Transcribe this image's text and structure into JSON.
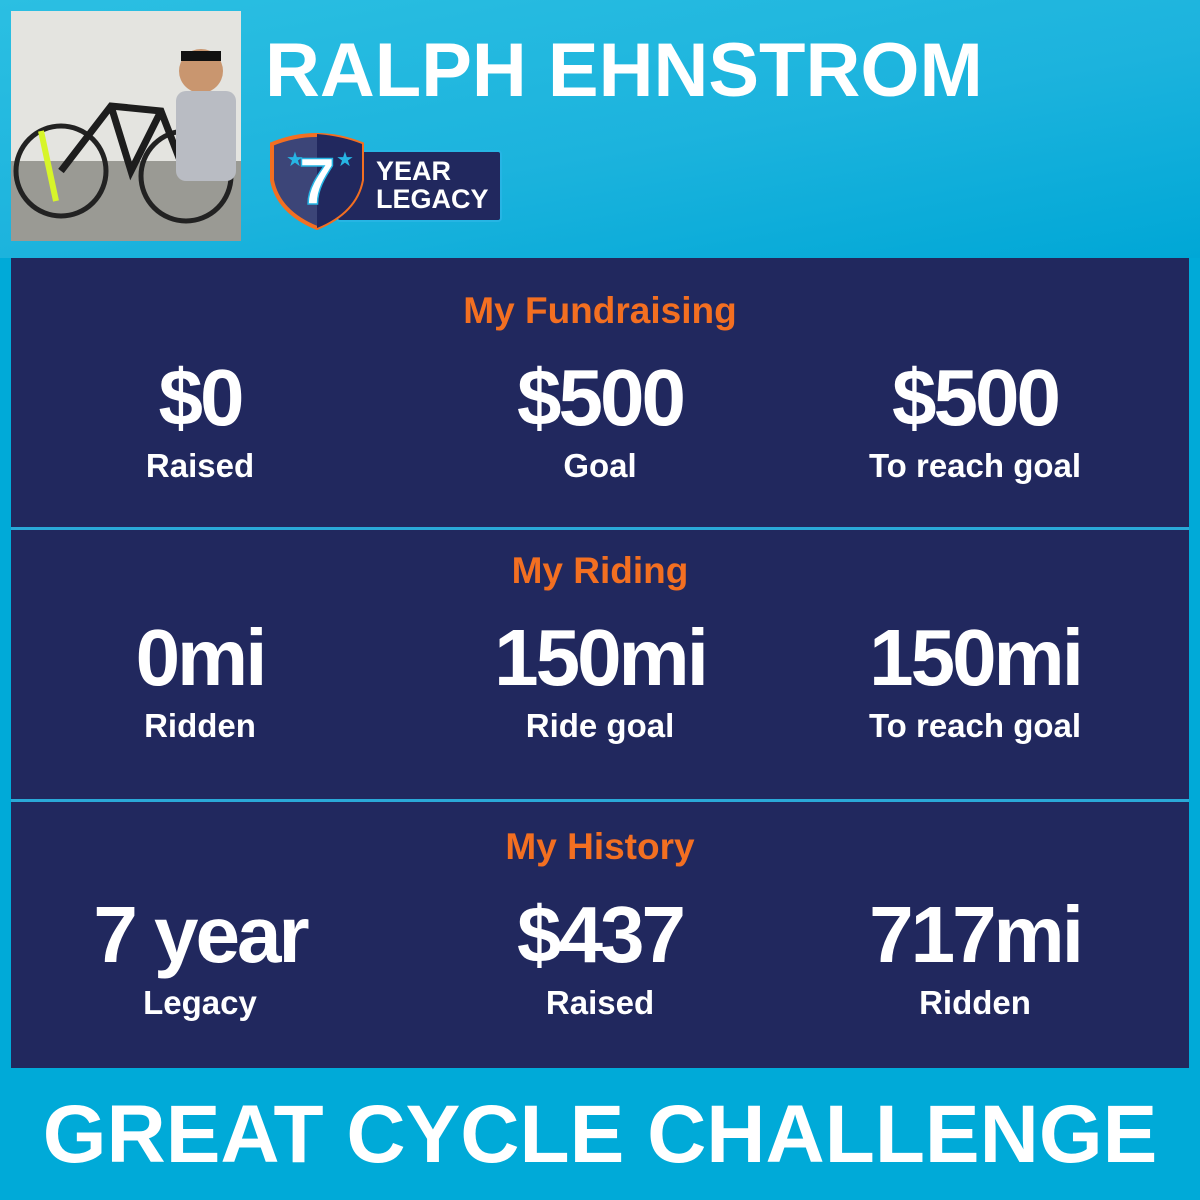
{
  "header": {
    "name": "RALPH EHNSTROM",
    "badge": {
      "number": "7",
      "line1": "YEAR",
      "line2": "LEGACY"
    }
  },
  "colors": {
    "background": "#00aad8",
    "panel": "#21285e",
    "accent": "#f36f21"
  },
  "sections": [
    {
      "title": "My Fundraising",
      "stats": [
        {
          "value": "$0",
          "label": "Raised"
        },
        {
          "value": "$500",
          "label": "Goal"
        },
        {
          "value": "$500",
          "label": "To reach goal"
        }
      ]
    },
    {
      "title": "My Riding",
      "stats": [
        {
          "value": "0mi",
          "label": "Ridden"
        },
        {
          "value": "150mi",
          "label": "Ride goal"
        },
        {
          "value": "150mi",
          "label": "To reach goal"
        }
      ]
    },
    {
      "title": "My History",
      "stats": [
        {
          "value": "7 year",
          "label": "Legacy"
        },
        {
          "value": "$437",
          "label": "Raised"
        },
        {
          "value": "717mi",
          "label": "Ridden"
        }
      ]
    }
  ],
  "footer": {
    "brand": "GREAT CYCLE CHALLENGE"
  }
}
